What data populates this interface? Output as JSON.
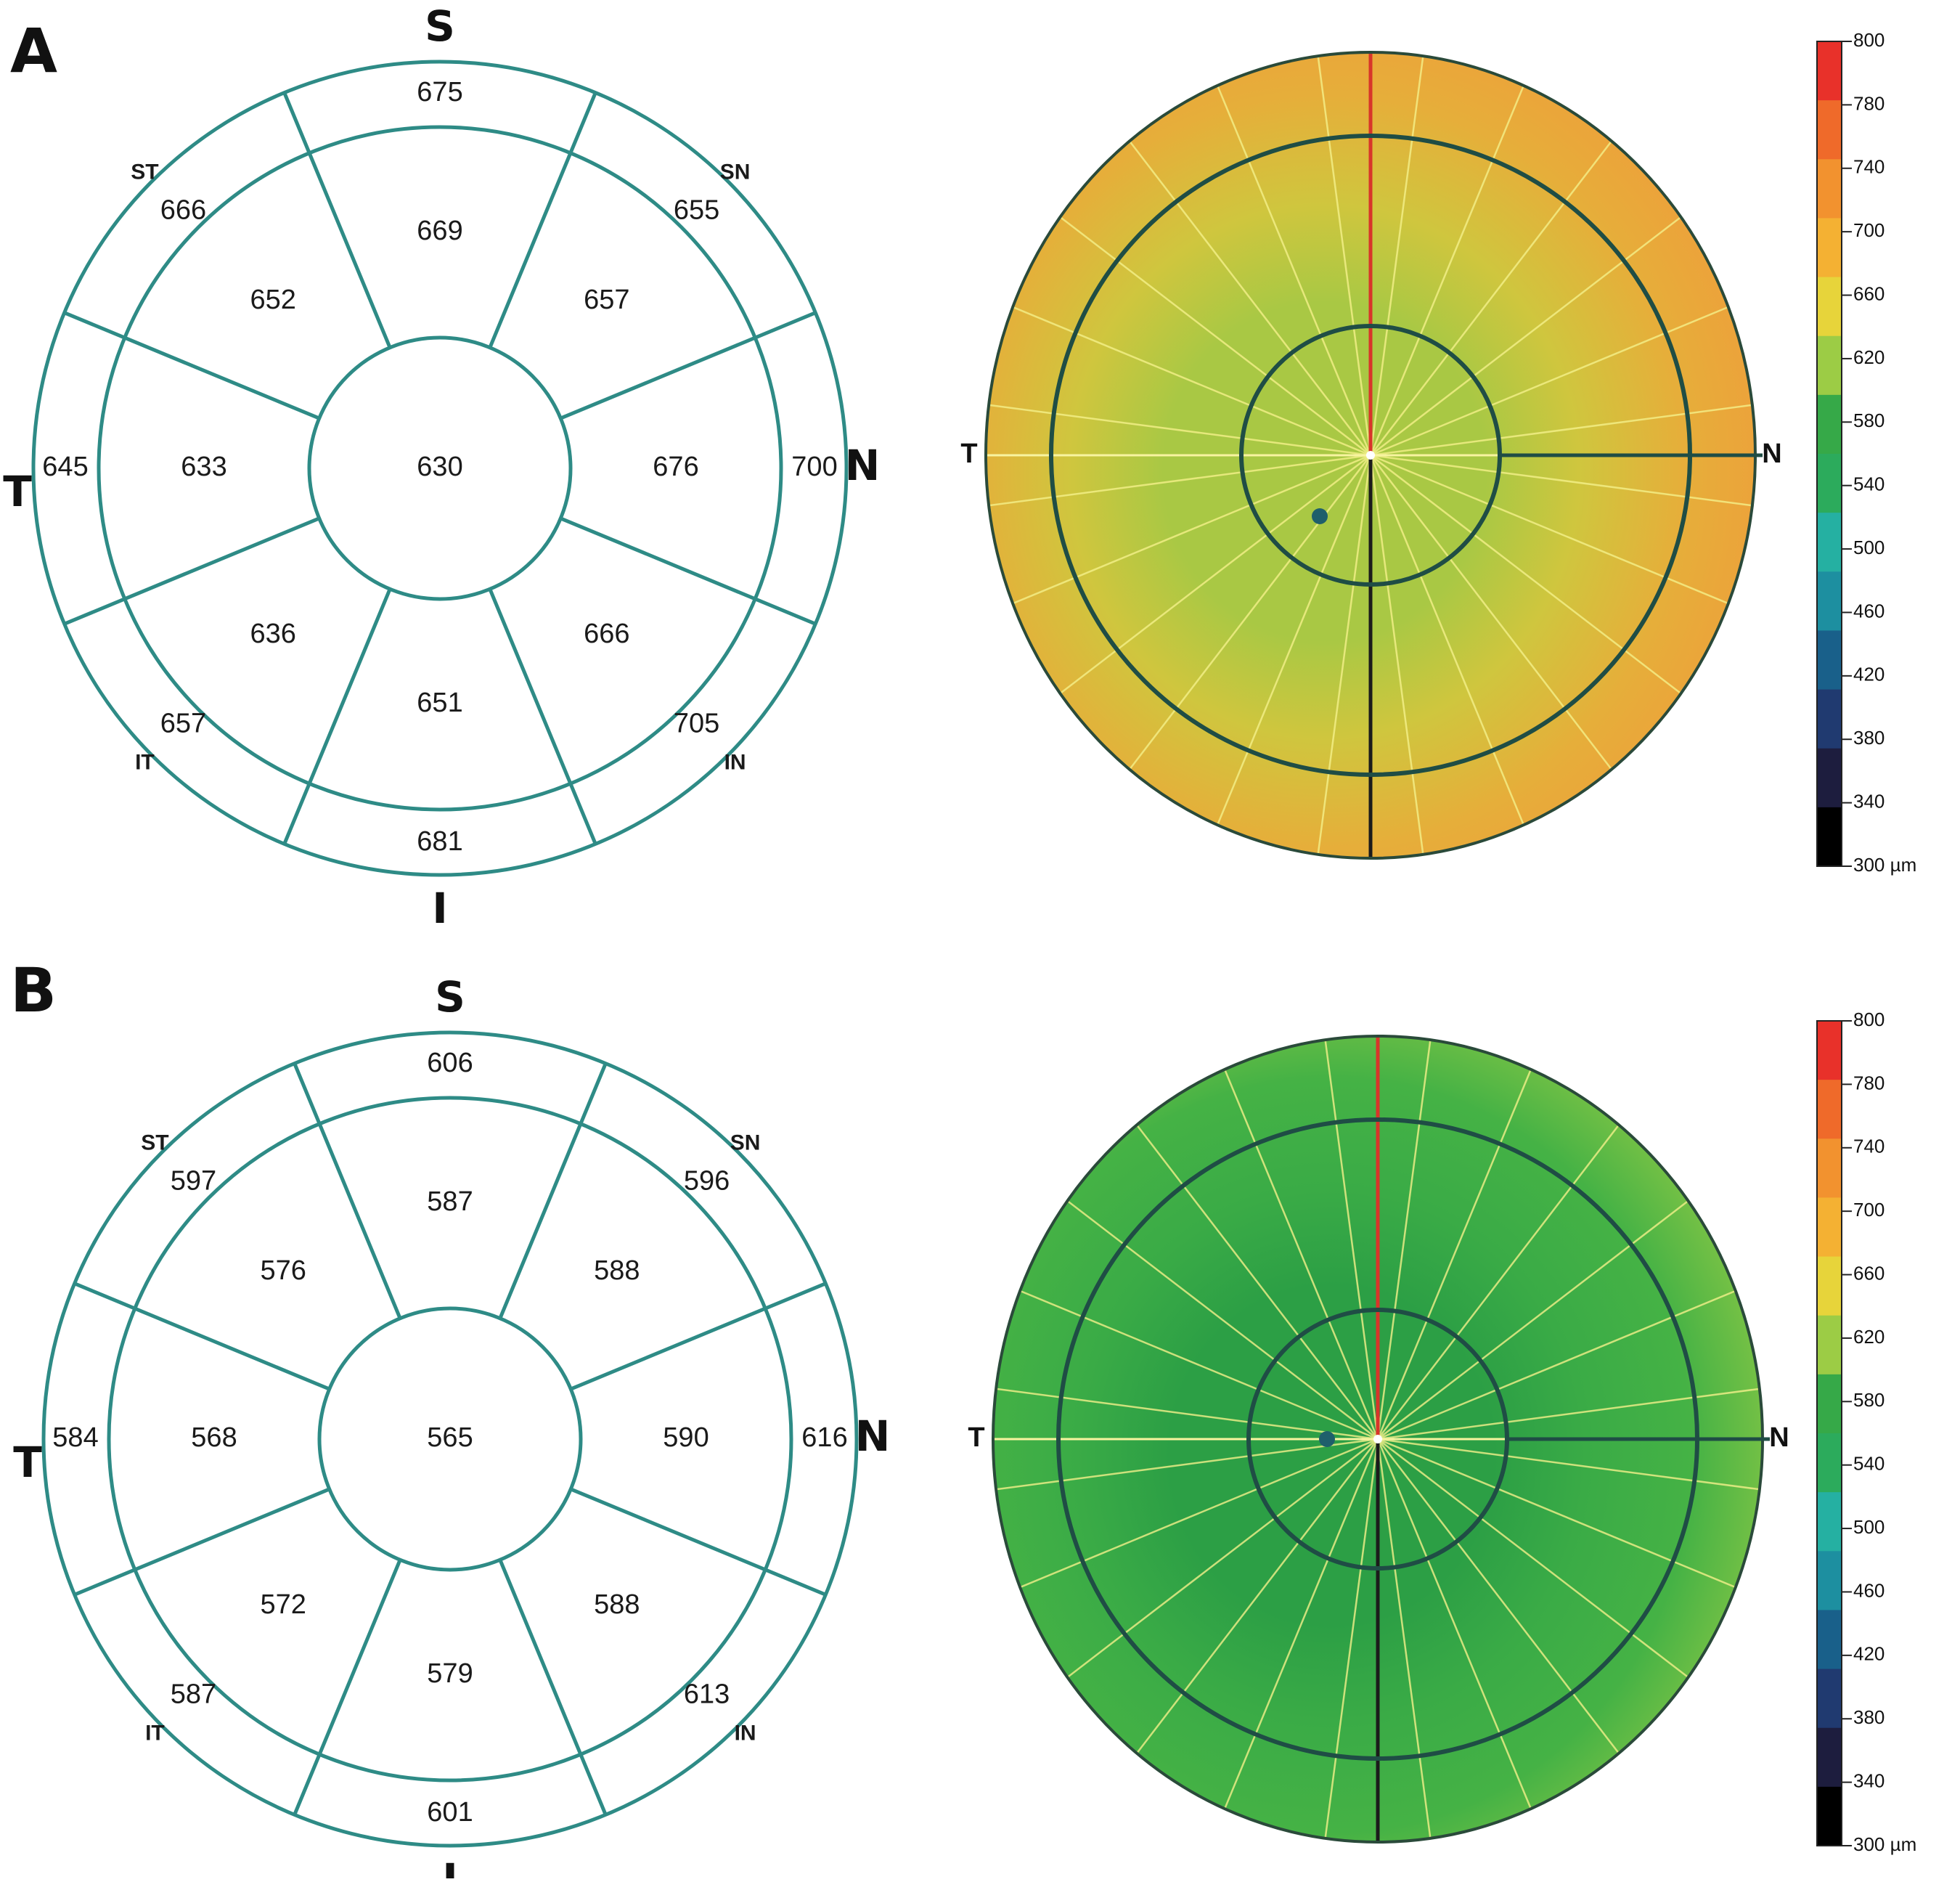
{
  "panels": [
    {
      "letter": "A",
      "directions": {
        "superior": "S",
        "inferior": "I",
        "temporal": "T",
        "nasal": "N"
      },
      "quadrant_labels": {
        "superotemporal": "ST",
        "superonasal": "SN",
        "inferotemporal": "IT",
        "inferonasal": "IN"
      },
      "values": {
        "center": "630",
        "inner_superior": "669",
        "inner_superonasal": "657",
        "inner_nasal": "676",
        "inner_inferonasal": "666",
        "inner_inferior": "651",
        "inner_inferotemporal": "636",
        "inner_temporal": "633",
        "inner_superotemporal": "652",
        "outer_superior": "675",
        "outer_superonasal": "655",
        "outer_nasal": "700",
        "outer_inferonasal": "705",
        "outer_inferior": "681",
        "outer_inferotemporal": "657",
        "outer_temporal": "645",
        "outer_superotemporal": "666"
      },
      "map": {
        "temporal": "T",
        "nasal": "N",
        "base_color": "#e6ae3a",
        "outer_color": "#ee9f3b",
        "mid_color": "#cfc63e",
        "center_color": "#a9c844"
      }
    },
    {
      "letter": "B",
      "directions": {
        "superior": "S",
        "inferior": "I",
        "temporal": "T",
        "nasal": "N"
      },
      "quadrant_labels": {
        "superotemporal": "ST",
        "superonasal": "SN",
        "inferotemporal": "IT",
        "inferonasal": "IN"
      },
      "values": {
        "center": "565",
        "inner_superior": "587",
        "inner_superonasal": "588",
        "inner_nasal": "590",
        "inner_inferonasal": "588",
        "inner_inferior": "579",
        "inner_inferotemporal": "572",
        "inner_temporal": "568",
        "inner_superotemporal": "576",
        "outer_superior": "606",
        "outer_superonasal": "596",
        "outer_nasal": "616",
        "outer_inferonasal": "613",
        "outer_inferior": "601",
        "outer_inferotemporal": "587",
        "outer_temporal": "584",
        "outer_superotemporal": "597"
      },
      "map": {
        "temporal": "T",
        "nasal": "N",
        "base_color": "#45b245",
        "outer_color": "#86c645",
        "mid_color": "#3aab46",
        "center_color": "#2c9f45"
      }
    }
  ],
  "color_scale": {
    "ticks": [
      "800",
      "780",
      "740",
      "700",
      "660",
      "620",
      "580",
      "540",
      "500",
      "460",
      "420",
      "380",
      "340",
      "300 µm"
    ],
    "stops": [
      "#e8312a",
      "#ef6a2a",
      "#f2922f",
      "#f4b133",
      "#e7d43a",
      "#9ccc45",
      "#36a948",
      "#2cab5c",
      "#25b0a2",
      "#1d8fa0",
      "#19608a",
      "#203a70",
      "#1d1d3e",
      "#000000"
    ]
  }
}
